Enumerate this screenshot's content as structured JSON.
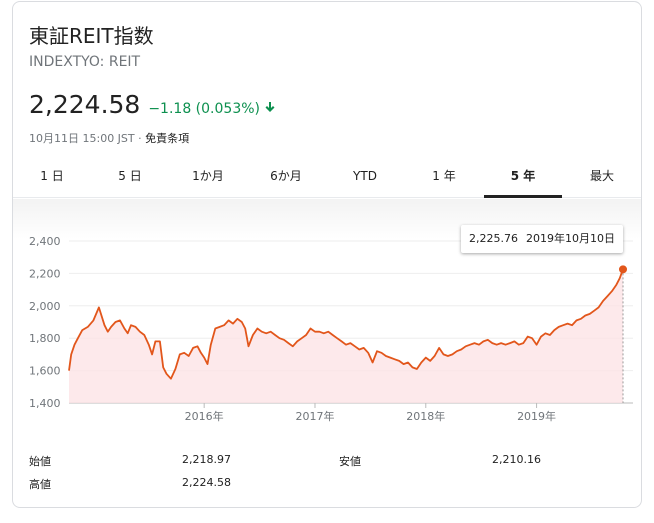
{
  "header": {
    "title": "東証REIT指数",
    "ticker": "INDEXTYO: REIT",
    "price": "2,224.58",
    "change": "−1.18 (0.053%)",
    "timestamp": "10月11日 15:00 JST · ",
    "disclaimer": "免責条項",
    "down_color": "#0d904f"
  },
  "tabs": [
    {
      "label": "1 日",
      "active": false
    },
    {
      "label": "5 日",
      "active": false
    },
    {
      "label": "1か月",
      "active": false
    },
    {
      "label": "6か月",
      "active": false
    },
    {
      "label": "YTD",
      "active": false
    },
    {
      "label": "1 年",
      "active": false
    },
    {
      "label": "5 年",
      "active": true
    },
    {
      "label": "最大",
      "active": false
    }
  ],
  "tooltip": {
    "value": "2,225.76",
    "date": "2019年10月10日"
  },
  "stats": {
    "open_label": "始値",
    "open_value": "2,218.97",
    "low_label": "安値",
    "low_value": "2,210.16",
    "high_label": "高値",
    "high_value": "2,224.58"
  },
  "chart_data": {
    "type": "area",
    "x_ticks": [
      "2016年",
      "2017年",
      "2018年",
      "2019年"
    ],
    "x_tick_years": [
      2016,
      2017,
      2018,
      2019
    ],
    "y_ticks": [
      "2,400",
      "2,200",
      "2,000",
      "1,800",
      "1,600",
      "1,400"
    ],
    "y_tick_values": [
      2400,
      2200,
      2000,
      1800,
      1600,
      1400
    ],
    "ylim": [
      1400,
      2400
    ],
    "xlim": [
      2014.78,
      2019.78
    ],
    "line_color": "#e2561b",
    "fill_color": "#fde4e6",
    "series": [
      {
        "x": [
          2014.78,
          2014.8,
          2014.83,
          2014.86,
          2014.9,
          2014.95,
          2015.0,
          2015.05,
          2015.1,
          2015.13,
          2015.16,
          2015.2,
          2015.24,
          2015.28,
          2015.31,
          2015.34,
          2015.38,
          2015.42,
          2015.46,
          2015.5,
          2015.53,
          2015.56,
          2015.6,
          2015.63,
          2015.66,
          2015.7,
          2015.74,
          2015.78,
          2015.82,
          2015.86,
          2015.9,
          2015.94,
          2015.97,
          2016.0,
          2016.03,
          2016.06,
          2016.1,
          2016.14,
          2016.18,
          2016.22,
          2016.26,
          2016.3,
          2016.34,
          2016.37,
          2016.4,
          2016.44,
          2016.48,
          2016.52,
          2016.56,
          2016.6,
          2016.64,
          2016.68,
          2016.72,
          2016.76,
          2016.8,
          2016.84,
          2016.88,
          2016.92,
          2016.96,
          2017.0,
          2017.04,
          2017.08,
          2017.12,
          2017.16,
          2017.2,
          2017.24,
          2017.28,
          2017.32,
          2017.36,
          2017.4,
          2017.44,
          2017.48,
          2017.52,
          2017.56,
          2017.6,
          2017.64,
          2017.68,
          2017.72,
          2017.76,
          2017.8,
          2017.84,
          2017.88,
          2017.92,
          2017.96,
          2018.0,
          2018.04,
          2018.08,
          2018.12,
          2018.16,
          2018.2,
          2018.24,
          2018.28,
          2018.32,
          2018.36,
          2018.4,
          2018.44,
          2018.48,
          2018.52,
          2018.56,
          2018.6,
          2018.64,
          2018.68,
          2018.72,
          2018.76,
          2018.8,
          2018.84,
          2018.88,
          2018.92,
          2018.96,
          2019.0,
          2019.04,
          2019.08,
          2019.12,
          2019.16,
          2019.2,
          2019.24,
          2019.28,
          2019.32,
          2019.36,
          2019.4,
          2019.44,
          2019.48,
          2019.52,
          2019.56,
          2019.6,
          2019.64,
          2019.68,
          2019.72,
          2019.75,
          2019.78
        ],
        "y": [
          1600,
          1700,
          1760,
          1800,
          1850,
          1870,
          1910,
          1990,
          1880,
          1840,
          1870,
          1900,
          1910,
          1860,
          1830,
          1880,
          1870,
          1840,
          1820,
          1760,
          1700,
          1780,
          1780,
          1620,
          1580,
          1550,
          1610,
          1700,
          1710,
          1690,
          1740,
          1750,
          1710,
          1680,
          1640,
          1760,
          1860,
          1870,
          1880,
          1910,
          1890,
          1920,
          1900,
          1860,
          1750,
          1820,
          1860,
          1840,
          1830,
          1840,
          1820,
          1800,
          1790,
          1770,
          1750,
          1780,
          1800,
          1820,
          1860,
          1840,
          1840,
          1830,
          1840,
          1820,
          1800,
          1780,
          1760,
          1770,
          1750,
          1730,
          1740,
          1710,
          1650,
          1720,
          1710,
          1690,
          1680,
          1670,
          1660,
          1640,
          1650,
          1620,
          1610,
          1650,
          1680,
          1660,
          1690,
          1740,
          1700,
          1690,
          1700,
          1720,
          1730,
          1750,
          1760,
          1770,
          1760,
          1780,
          1790,
          1770,
          1760,
          1770,
          1760,
          1770,
          1780,
          1760,
          1770,
          1810,
          1800,
          1760,
          1810,
          1830,
          1820,
          1850,
          1870,
          1880,
          1890,
          1880,
          1910,
          1920,
          1940,
          1950,
          1970,
          1990,
          2030,
          2060,
          2090,
          2130,
          2170,
          2225
        ]
      }
    ],
    "tooltip_point": {
      "x": 2019.78,
      "y": 2225
    }
  }
}
